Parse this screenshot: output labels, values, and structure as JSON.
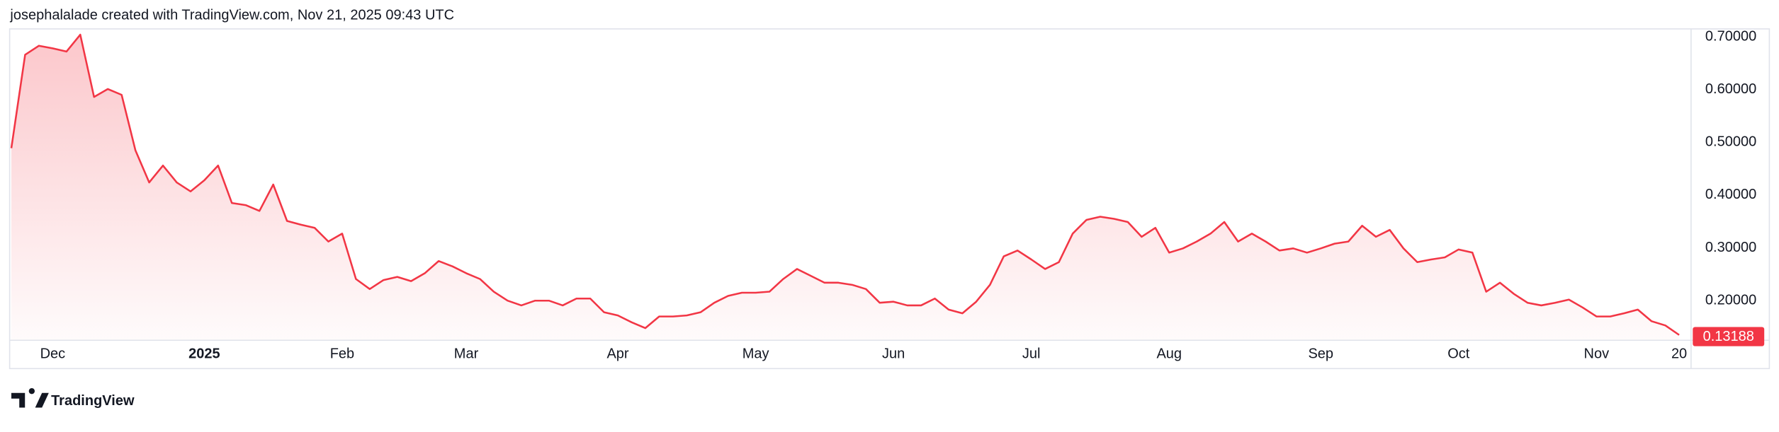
{
  "header": {
    "caption": "josephalalade created with TradingView.com, Nov 21, 2025 09:43 UTC"
  },
  "footer": {
    "logo": "TradingView"
  },
  "chart_data": {
    "type": "area",
    "categories": [
      null,
      null,
      null,
      "Dec",
      null,
      null,
      null,
      null,
      null,
      null,
      null,
      null,
      null,
      null,
      "2025",
      null,
      null,
      null,
      null,
      null,
      null,
      null,
      null,
      null,
      "Feb",
      null,
      null,
      null,
      null,
      null,
      null,
      null,
      null,
      "Mar",
      null,
      null,
      null,
      null,
      null,
      null,
      null,
      null,
      null,
      null,
      "Apr",
      null,
      null,
      null,
      null,
      null,
      null,
      null,
      null,
      null,
      "May",
      null,
      null,
      null,
      null,
      null,
      null,
      null,
      null,
      null,
      "Jun",
      null,
      null,
      null,
      null,
      null,
      null,
      null,
      null,
      null,
      "Jul",
      null,
      null,
      null,
      null,
      null,
      null,
      null,
      null,
      null,
      "Aug",
      null,
      null,
      null,
      null,
      null,
      null,
      null,
      null,
      null,
      null,
      "Sep",
      null,
      null,
      null,
      null,
      null,
      null,
      null,
      null,
      null,
      "Oct",
      null,
      null,
      null,
      null,
      null,
      null,
      null,
      null,
      null,
      "Nov",
      null,
      null,
      null,
      null,
      null,
      "20"
    ],
    "values": [
      0.489,
      0.666,
      0.683,
      0.678,
      0.672,
      0.704,
      0.586,
      0.601,
      0.59,
      0.485,
      0.424,
      0.456,
      0.424,
      0.407,
      0.428,
      0.456,
      0.385,
      0.381,
      0.37,
      0.42,
      0.351,
      0.344,
      0.338,
      0.312,
      0.327,
      0.241,
      0.222,
      0.239,
      0.245,
      0.237,
      0.252,
      0.275,
      0.265,
      0.252,
      0.241,
      0.217,
      0.2,
      0.191,
      0.2,
      0.2,
      0.191,
      0.204,
      0.204,
      0.178,
      0.172,
      0.159,
      0.148,
      0.17,
      0.17,
      0.172,
      0.178,
      0.196,
      0.209,
      0.215,
      0.215,
      0.217,
      0.241,
      0.26,
      0.247,
      0.234,
      0.234,
      0.23,
      0.222,
      0.196,
      0.198,
      0.191,
      0.191,
      0.204,
      0.183,
      0.176,
      0.198,
      0.23,
      0.284,
      0.295,
      0.278,
      0.26,
      0.273,
      0.327,
      0.353,
      0.359,
      0.355,
      0.349,
      0.321,
      0.338,
      0.291,
      0.299,
      0.312,
      0.327,
      0.349,
      0.312,
      0.327,
      0.312,
      0.295,
      0.299,
      0.291,
      0.299,
      0.308,
      0.312,
      0.342,
      0.321,
      0.334,
      0.299,
      0.273,
      0.278,
      0.282,
      0.297,
      0.291,
      0.217,
      0.234,
      0.213,
      0.196,
      0.191,
      0.196,
      0.202,
      0.187,
      0.17,
      0.17,
      0.176,
      0.183,
      0.161,
      0.153,
      0.135
    ],
    "color": "#f23645",
    "last_price": 0.13188,
    "ylim": [
      0.126,
      0.716
    ],
    "yticks": [
      {
        "value": 0.2,
        "label": "0.20000"
      },
      {
        "value": 0.3,
        "label": "0.30000"
      },
      {
        "value": 0.4,
        "label": "0.40000"
      },
      {
        "value": 0.5,
        "label": "0.50000"
      },
      {
        "value": 0.6,
        "label": "0.60000"
      },
      {
        "value": 0.7,
        "label": "0.70000"
      }
    ],
    "grid": false
  }
}
